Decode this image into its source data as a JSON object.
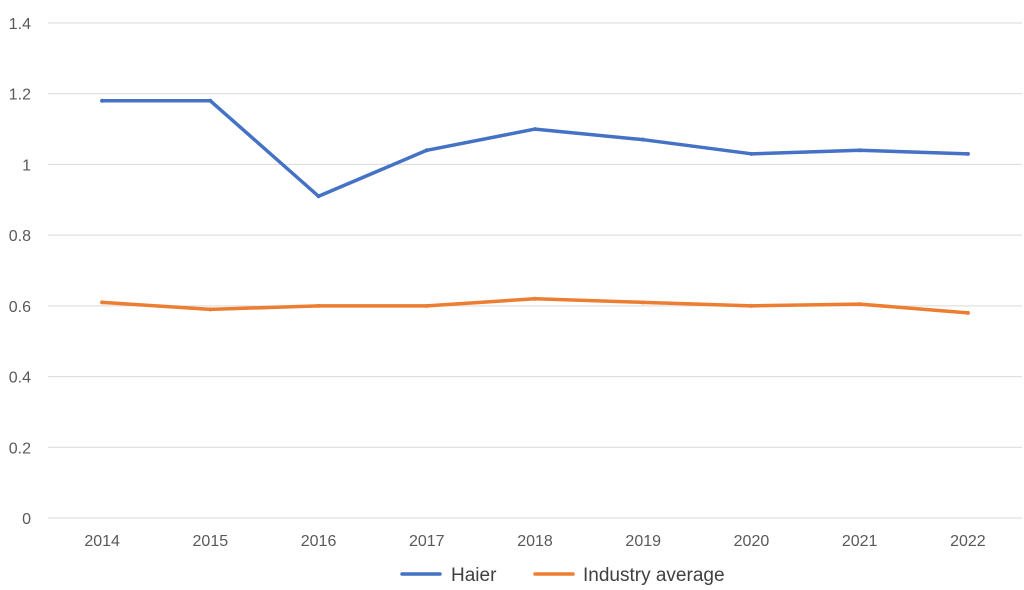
{
  "chart_data": {
    "type": "line",
    "title": "",
    "xlabel": "",
    "ylabel": "",
    "categories": [
      "2014",
      "2015",
      "2016",
      "2017",
      "2018",
      "2019",
      "2020",
      "2021",
      "2022"
    ],
    "ylim": [
      0,
      1.4
    ],
    "yticks": [
      "0",
      "0.2",
      "0.4",
      "0.6",
      "0.8",
      "1",
      "1.2",
      "1.4"
    ],
    "grid": true,
    "legend_position": "bottom",
    "series": [
      {
        "name": "Haier",
        "color": "#4472c4",
        "values": [
          1.18,
          1.18,
          0.91,
          1.04,
          1.1,
          1.07,
          1.03,
          1.04,
          1.03
        ]
      },
      {
        "name": "Industry average",
        "color": "#ed7d31",
        "values": [
          0.61,
          0.59,
          0.6,
          0.6,
          0.62,
          0.61,
          0.6,
          0.605,
          0.58
        ]
      }
    ]
  }
}
